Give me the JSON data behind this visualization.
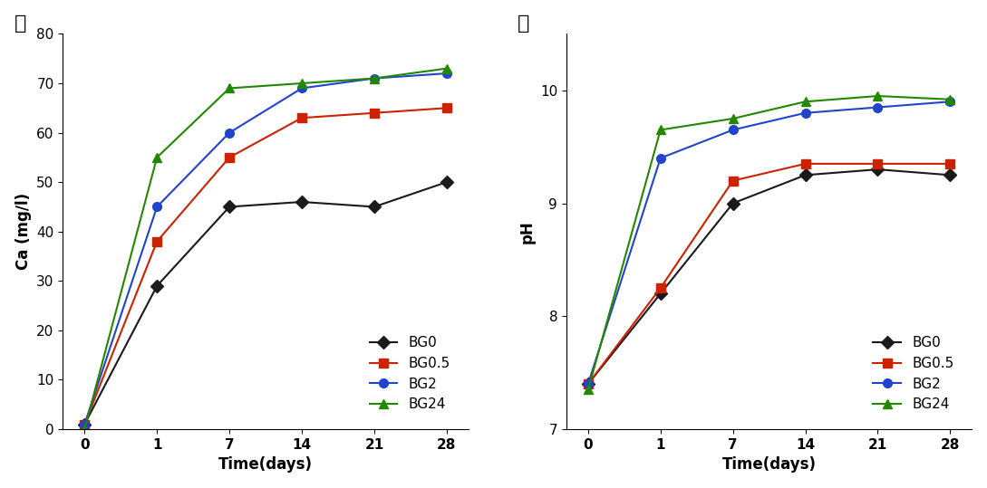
{
  "time_labels": [
    "0",
    "1",
    "7",
    "14",
    "21",
    "28"
  ],
  "time_pos": [
    0,
    1,
    2,
    3,
    4,
    5
  ],
  "ca_BG0": [
    1,
    29,
    45,
    46,
    45,
    50
  ],
  "ca_BG05": [
    1,
    38,
    55,
    63,
    64,
    65
  ],
  "ca_BG2": [
    1,
    45,
    60,
    69,
    71,
    72
  ],
  "ca_BG24": [
    0,
    55,
    69,
    70,
    71,
    73
  ],
  "ph_BG0": [
    7.4,
    8.2,
    9.0,
    9.25,
    9.3,
    9.25
  ],
  "ph_BG05": [
    7.4,
    8.25,
    9.2,
    9.35,
    9.35,
    9.35
  ],
  "ph_BG2": [
    7.4,
    9.4,
    9.65,
    9.8,
    9.85,
    9.9
  ],
  "ph_BG24": [
    7.35,
    9.65,
    9.75,
    9.9,
    9.95,
    9.92
  ],
  "ca_ylim": [
    0,
    80
  ],
  "ca_yticks": [
    0,
    10,
    20,
    30,
    40,
    50,
    60,
    70,
    80
  ],
  "ph_ylim": [
    7,
    10.5
  ],
  "ph_yticks": [
    7,
    8,
    9,
    10
  ],
  "xlabel": "Time(days)",
  "ca_ylabel": "Ca (mg/l)",
  "ph_ylabel": "pH",
  "label_BG0": "BG0",
  "label_BG05": "BG0.5",
  "label_BG2": "BG2",
  "label_BG24": "BG24",
  "color_BG0": "#1a1a1a",
  "color_BG05": "#cc2200",
  "color_BG2": "#2244cc",
  "color_BG24": "#228800",
  "marker_BG0": "D",
  "marker_BG05": "s",
  "marker_BG2": "o",
  "marker_BG24": "^",
  "panel_ga": "가",
  "panel_na": "나",
  "legend_fontsize": 11,
  "axis_fontsize": 12,
  "tick_fontsize": 11,
  "linewidth": 1.5,
  "markersize": 7
}
